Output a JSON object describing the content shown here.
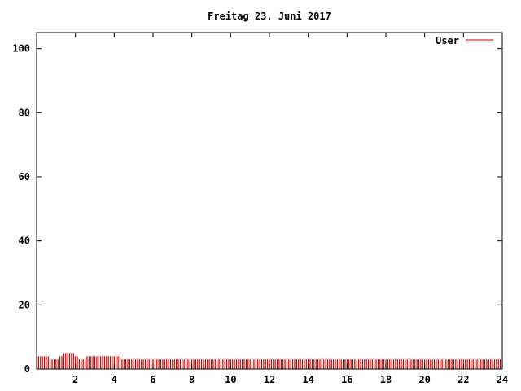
{
  "chart_data": {
    "type": "bar",
    "title": "Freitag 23. Juni 2017",
    "xlabel": "",
    "ylabel": "",
    "xlim": [
      0,
      24
    ],
    "ylim": [
      0,
      105
    ],
    "xticks": [
      2,
      4,
      6,
      8,
      10,
      12,
      14,
      16,
      18,
      20,
      22,
      24
    ],
    "yticks": [
      0,
      20,
      40,
      60,
      80,
      100
    ],
    "grid": false,
    "legend": "top-right",
    "series": [
      {
        "name": "User",
        "color": "#cc0000",
        "x": [
          0.1,
          0.2,
          0.3,
          0.4,
          0.5,
          0.6,
          0.7,
          0.8,
          0.9,
          1.0,
          1.1,
          1.2,
          1.3,
          1.4,
          1.5,
          1.6,
          1.7,
          1.8,
          1.9,
          2.0,
          2.1,
          2.2,
          2.3,
          2.4,
          2.5,
          2.6,
          2.7,
          2.8,
          2.9,
          3.0,
          3.1,
          3.2,
          3.3,
          3.4,
          3.5,
          3.6,
          3.7,
          3.8,
          3.9,
          4.0,
          4.1,
          4.2,
          4.3,
          4.4,
          4.5,
          4.6,
          4.7,
          4.8,
          4.9,
          5.0,
          5.1,
          5.2,
          5.3,
          5.4,
          5.5,
          5.6,
          5.7,
          5.8,
          5.9,
          6.0,
          6.1,
          6.2,
          6.3,
          6.4,
          6.5,
          6.6,
          6.7,
          6.8,
          6.9,
          7.0,
          7.1,
          7.2,
          7.3,
          7.4,
          7.5,
          7.6,
          7.7,
          7.8,
          7.9,
          8.0,
          8.1,
          8.2,
          8.3,
          8.4,
          8.5,
          8.6,
          8.7,
          8.8,
          8.9,
          9.0,
          9.1,
          9.2,
          9.3,
          9.4,
          9.5,
          9.6,
          9.7,
          9.8,
          9.9,
          10.0,
          10.1,
          10.2,
          10.3,
          10.4,
          10.5,
          10.6,
          10.7,
          10.8,
          10.9,
          11.0,
          11.1,
          11.2,
          11.3,
          11.4,
          11.5,
          11.6,
          11.7,
          11.8,
          11.9,
          12.0,
          12.1,
          12.2,
          12.3,
          12.4,
          12.5,
          12.6,
          12.7,
          12.8,
          12.9,
          13.0,
          13.1,
          13.2,
          13.3,
          13.4,
          13.5,
          13.6,
          13.7,
          13.8,
          13.9,
          14.0,
          14.1,
          14.2,
          14.3,
          14.4,
          14.5,
          14.6,
          14.7,
          14.8,
          14.9,
          15.0,
          15.1,
          15.2,
          15.3,
          15.4,
          15.5,
          15.6,
          15.7,
          15.8,
          15.9,
          16.0,
          16.1,
          16.2,
          16.3,
          16.4,
          16.5,
          16.6,
          16.7,
          16.8,
          16.9,
          17.0,
          17.1,
          17.2,
          17.3,
          17.4,
          17.5,
          17.6,
          17.7,
          17.8,
          17.9,
          18.0,
          18.1,
          18.2,
          18.3,
          18.4,
          18.5,
          18.6,
          18.7,
          18.8,
          18.9,
          19.0,
          19.1,
          19.2,
          19.3,
          19.4,
          19.5,
          19.6,
          19.7,
          19.8,
          19.9,
          20.0,
          20.1,
          20.2,
          20.3,
          20.4,
          20.5,
          20.6,
          20.7,
          20.8,
          20.9,
          21.0,
          21.1,
          21.2,
          21.3,
          21.4,
          21.5,
          21.6,
          21.7,
          21.8,
          21.9,
          22.0,
          22.1,
          22.2,
          22.3,
          22.4,
          22.5,
          22.6,
          22.7,
          22.8,
          22.9,
          23.0,
          23.1,
          23.2,
          23.3,
          23.4,
          23.5,
          23.6,
          23.7,
          23.8,
          23.9
        ],
        "values": [
          4,
          4,
          4,
          4,
          4,
          4,
          3,
          3,
          3,
          3,
          3,
          4,
          4,
          5,
          5,
          5,
          5,
          5,
          5,
          4,
          4,
          3,
          3,
          3,
          3,
          4,
          4,
          4,
          4,
          4,
          4,
          4,
          4,
          4,
          4,
          4,
          4,
          4,
          4,
          4,
          4,
          4,
          4,
          3,
          3,
          3,
          3,
          3,
          3,
          3,
          3,
          3,
          3,
          3,
          3,
          3,
          3,
          3,
          3,
          3,
          3,
          3,
          3,
          3,
          3,
          3,
          3,
          3,
          3,
          3,
          3,
          3,
          3,
          3,
          3,
          3,
          3,
          3,
          3,
          3,
          3,
          3,
          3,
          3,
          3,
          3,
          3,
          3,
          3,
          3,
          3,
          3,
          3,
          3,
          3,
          3,
          3,
          3,
          3,
          3,
          3,
          3,
          3,
          3,
          3,
          3,
          3,
          3,
          3,
          3,
          3,
          3,
          3,
          3,
          3,
          3,
          3,
          3,
          3,
          3,
          3,
          3,
          3,
          3,
          3,
          3,
          3,
          3,
          3,
          3,
          3,
          3,
          3,
          3,
          3,
          3,
          3,
          3,
          3,
          3,
          3,
          3,
          3,
          3,
          3,
          3,
          3,
          3,
          3,
          3,
          3,
          3,
          3,
          3,
          3,
          3,
          3,
          3,
          3,
          3,
          3,
          3,
          3,
          3,
          3,
          3,
          3,
          3,
          3,
          3,
          3,
          3,
          3,
          3,
          3,
          3,
          3,
          3,
          3,
          3,
          3,
          3,
          3,
          3,
          3,
          3,
          3,
          3,
          3,
          3,
          3,
          3,
          3,
          3,
          3,
          3,
          3,
          3,
          3,
          3,
          3,
          3,
          3,
          3,
          3,
          3,
          3,
          3,
          3,
          3,
          3,
          3,
          3,
          3,
          3,
          3,
          3,
          3,
          3,
          3,
          3,
          3,
          3,
          3,
          3,
          3,
          3,
          3,
          3,
          3,
          3,
          3,
          3,
          3,
          3,
          3,
          3,
          3,
          3
        ]
      }
    ]
  }
}
